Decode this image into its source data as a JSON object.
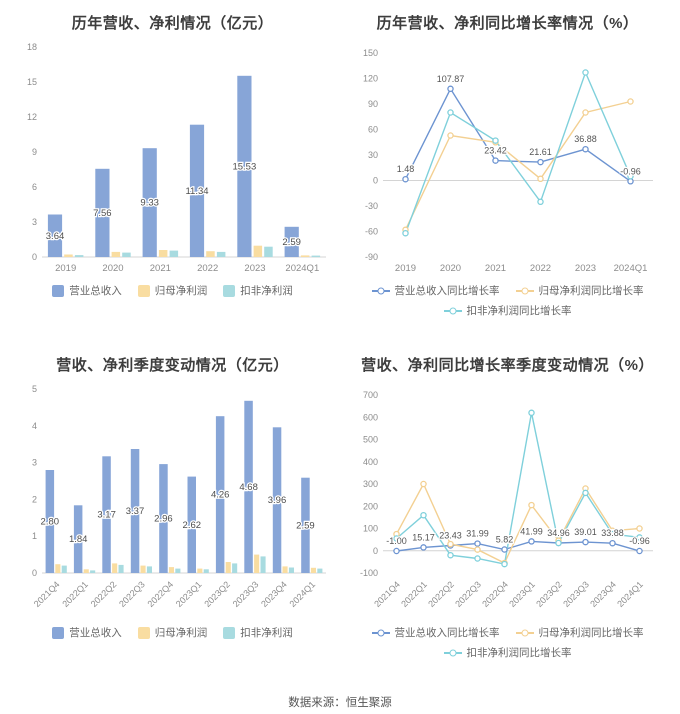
{
  "page": {
    "source_note": "数据来源：恒生聚源"
  },
  "colors": {
    "bar_revenue": "#87a5d7",
    "bar_net_profit": "#f9dda1",
    "bar_non_gaap": "#a8dbe0",
    "line_revenue": "#6d94d1",
    "line_net_profit": "#f3d092",
    "line_non_gaap": "#7fd0db"
  },
  "chart_data": [
    {
      "id": "annual-revenue-profit",
      "type": "bar",
      "title": "历年营收、净利情况（亿元）",
      "categories": [
        "2019",
        "2020",
        "2021",
        "2022",
        "2023",
        "2024Q1"
      ],
      "series": [
        {
          "name": "营业总收入",
          "color": "#87a5d7",
          "show_labels": true,
          "values": [
            3.64,
            7.56,
            9.33,
            11.34,
            15.53,
            2.59
          ]
        },
        {
          "name": "归母净利润",
          "color": "#f9dda1",
          "values": [
            0.21,
            0.44,
            0.6,
            0.5,
            0.97,
            0.14
          ]
        },
        {
          "name": "扣非净利润",
          "color": "#a8dbe0",
          "values": [
            0.16,
            0.38,
            0.55,
            0.44,
            0.88,
            0.12
          ]
        }
      ],
      "ylim": [
        0,
        18
      ],
      "yticks": [
        0,
        3,
        6,
        9,
        12,
        15,
        18
      ],
      "rotate_xlabels": false,
      "grid": false,
      "legend_position": "bottom"
    },
    {
      "id": "annual-growth-rates",
      "type": "line",
      "title": "历年营收、净利同比增长率情况（%）",
      "categories": [
        "2019",
        "2020",
        "2021",
        "2022",
        "2023",
        "2024Q1"
      ],
      "series": [
        {
          "name": "营业总收入同比增长率",
          "color": "#6d94d1",
          "show_labels": true,
          "values": [
            1.48,
            107.87,
            23.42,
            21.61,
            36.88,
            -0.96
          ]
        },
        {
          "name": "归母净利润同比增长率",
          "color": "#f3d092",
          "values": [
            -58,
            53,
            45,
            2,
            80,
            93
          ]
        },
        {
          "name": "扣非净利润同比增长率",
          "color": "#7fd0db",
          "values": [
            -62,
            80,
            47,
            -25,
            127,
            5
          ]
        }
      ],
      "ylim": [
        -90,
        150
      ],
      "yticks": [
        -90,
        -60,
        -30,
        0,
        30,
        60,
        90,
        120,
        150
      ],
      "rotate_xlabels": false,
      "grid": false,
      "legend_position": "bottom"
    },
    {
      "id": "quarterly-revenue-profit",
      "type": "bar",
      "title": "营收、净利季度变动情况（亿元）",
      "categories": [
        "2021Q4",
        "2022Q1",
        "2022Q2",
        "2022Q3",
        "2022Q4",
        "2023Q1",
        "2023Q2",
        "2023Q3",
        "2023Q4",
        "2024Q1"
      ],
      "series": [
        {
          "name": "营业总收入",
          "color": "#87a5d7",
          "show_labels": true,
          "values": [
            2.8,
            1.84,
            3.17,
            3.37,
            2.96,
            2.62,
            4.26,
            4.68,
            3.96,
            2.59
          ]
        },
        {
          "name": "归母净利润",
          "color": "#f9dda1",
          "values": [
            0.24,
            0.1,
            0.26,
            0.2,
            0.16,
            0.12,
            0.3,
            0.5,
            0.18,
            0.14
          ]
        },
        {
          "name": "扣非净利润",
          "color": "#a8dbe0",
          "values": [
            0.2,
            0.07,
            0.22,
            0.18,
            0.12,
            0.1,
            0.26,
            0.45,
            0.15,
            0.12
          ]
        }
      ],
      "ylim": [
        0,
        5
      ],
      "yticks": [
        0,
        1,
        2,
        3,
        4,
        5
      ],
      "rotate_xlabels": true,
      "grid": false,
      "legend_position": "bottom"
    },
    {
      "id": "quarterly-growth-rates",
      "type": "line",
      "title": "营收、净利同比增长率季度变动情况（%）",
      "categories": [
        "2021Q4",
        "2022Q1",
        "2022Q2",
        "2022Q3",
        "2022Q4",
        "2023Q1",
        "2023Q2",
        "2023Q3",
        "2023Q4",
        "2024Q1"
      ],
      "series": [
        {
          "name": "营业总收入同比增长率",
          "color": "#6d94d1",
          "show_labels": true,
          "values": [
            -1.0,
            15.17,
            23.43,
            31.99,
            5.82,
            41.99,
            34.96,
            39.01,
            33.88,
            -0.96
          ]
        },
        {
          "name": "归母净利润同比增长率",
          "color": "#f3d092",
          "values": [
            75,
            300,
            30,
            5,
            -55,
            205,
            45,
            280,
            90,
            100
          ]
        },
        {
          "name": "扣非净利润同比增长率",
          "color": "#7fd0db",
          "values": [
            55,
            160,
            -20,
            -35,
            -60,
            620,
            35,
            260,
            75,
            60
          ]
        }
      ],
      "ylim": [
        -100,
        700
      ],
      "yticks": [
        -100,
        0,
        100,
        200,
        300,
        400,
        500,
        600,
        700
      ],
      "rotate_xlabels": true,
      "grid": false,
      "legend_position": "bottom"
    }
  ]
}
